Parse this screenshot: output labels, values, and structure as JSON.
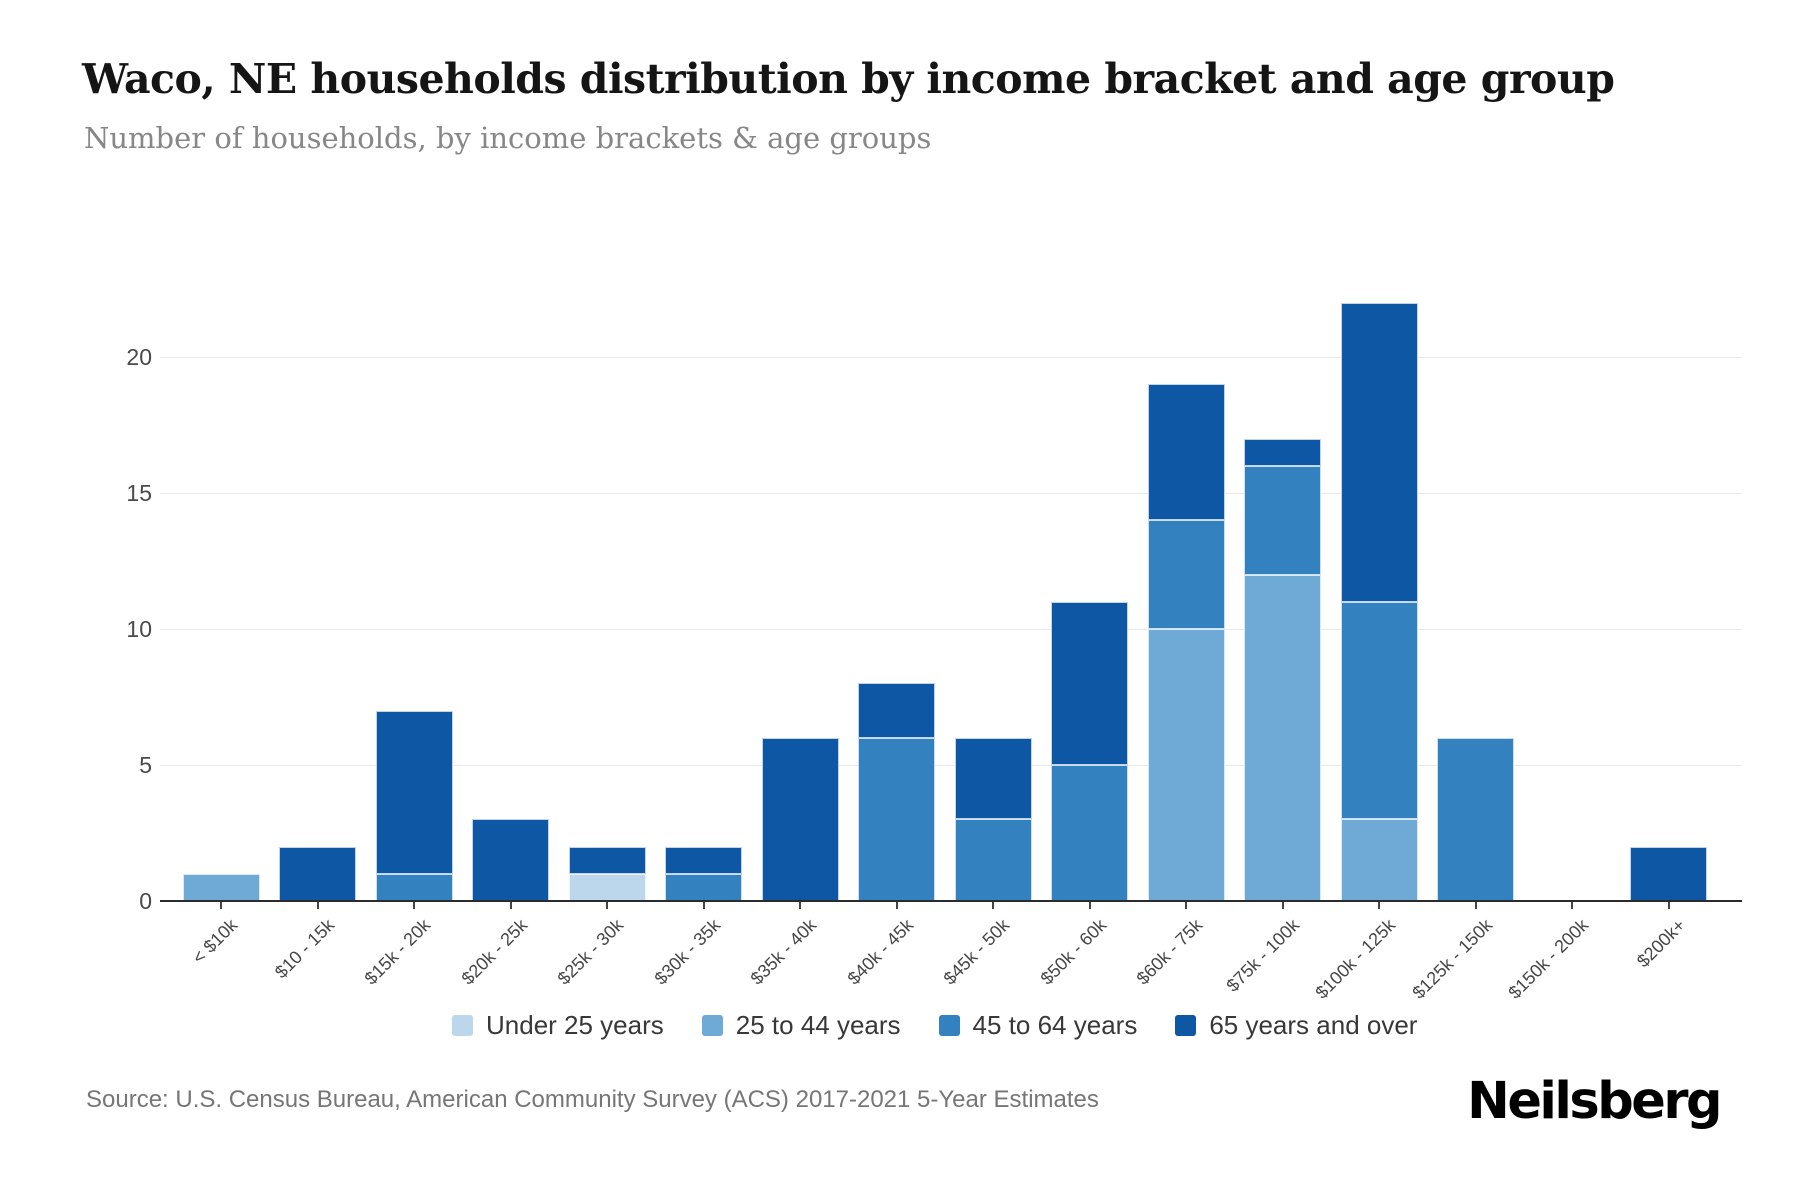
{
  "header": {
    "title": "Waco, NE households distribution by income bracket and age group",
    "subtitle": "Number of households, by income brackets & age groups"
  },
  "chart_data": {
    "type": "bar",
    "stacked": true,
    "title": "Waco, NE households distribution by income bracket and age group",
    "xlabel": "",
    "ylabel": "",
    "grid": true,
    "legend_position": "bottom",
    "yticks": [
      0,
      5,
      10,
      15,
      20
    ],
    "ylim": [
      0,
      24.1
    ],
    "categories": [
      "< $10k",
      "$10 - 15k",
      "$15k - 20k",
      "$20k - 25k",
      "$25k - 30k",
      "$30k - 35k",
      "$35k - 40k",
      "$40k - 45k",
      "$45k - 50k",
      "$50k - 60k",
      "$60k - 75k",
      "$75k - 100k",
      "$100k - 125k",
      "$125k - 150k",
      "$150k - 200k",
      "$200k+"
    ],
    "series": [
      {
        "name": "Under 25 years",
        "color": "#BCD6EB",
        "values": [
          0,
          0,
          0,
          0,
          1,
          0,
          0,
          0,
          0,
          0,
          0,
          0,
          0,
          0,
          0,
          0
        ]
      },
      {
        "name": "25 to 44 years",
        "color": "#6FA9D6",
        "values": [
          1,
          0,
          0,
          0,
          0,
          0,
          0,
          0,
          0,
          0,
          10,
          12,
          3,
          0,
          0,
          0
        ]
      },
      {
        "name": "45 to 64 years",
        "color": "#3381BF",
        "values": [
          0,
          0,
          1,
          0,
          0,
          1,
          0,
          6,
          3,
          5,
          4,
          4,
          8,
          6,
          0,
          0
        ]
      },
      {
        "name": "65 years and over",
        "color": "#0D57A4",
        "values": [
          0,
          2,
          6,
          3,
          1,
          1,
          6,
          2,
          3,
          6,
          5,
          1,
          11,
          0,
          0,
          2
        ]
      }
    ],
    "totals": [
      1,
      2,
      7,
      3,
      2,
      2,
      6,
      8,
      6,
      11,
      19,
      17,
      22,
      6,
      0,
      2
    ]
  },
  "footer": {
    "source": "Source: U.S. Census Bureau, American Community Survey (ACS) 2017-2021 5-Year Estimates",
    "brand": "Neilsberg"
  }
}
